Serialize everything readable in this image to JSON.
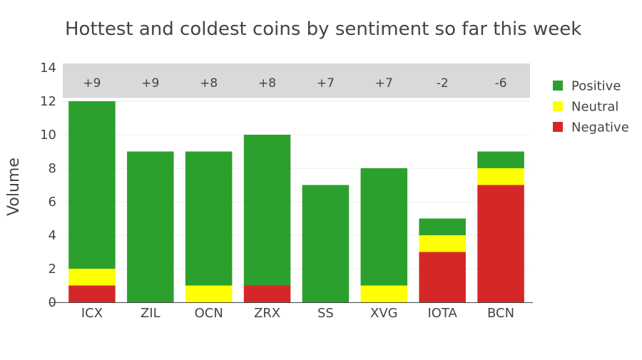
{
  "chart_data": {
    "type": "bar",
    "stacked": true,
    "title": "Hottest and coldest coins by sentiment so far this week",
    "ylabel": "Volume",
    "xlabel": "",
    "ylim": [
      0,
      14
    ],
    "yticks": [
      0,
      2,
      4,
      6,
      8,
      10,
      12,
      14
    ],
    "grid": true,
    "legend_position": "right",
    "categories": [
      "ICX",
      "ZIL",
      "OCN",
      "ZRX",
      "SS",
      "XVG",
      "IOTA",
      "BCN"
    ],
    "scores": [
      "+9",
      "+9",
      "+8",
      "+8",
      "+7",
      "+7",
      "-2",
      "-6"
    ],
    "series": [
      {
        "name": "Negative",
        "color": "#d62728",
        "values": [
          1,
          0,
          0,
          1,
          0,
          0,
          3,
          7
        ]
      },
      {
        "name": "Neutral",
        "color": "#ffff00",
        "values": [
          1,
          0,
          1,
          0,
          0,
          1,
          1,
          1
        ]
      },
      {
        "name": "Positive",
        "color": "#2ca02c",
        "values": [
          10,
          9,
          8,
          9,
          7,
          7,
          1,
          1
        ]
      }
    ],
    "legend_order": [
      "Positive",
      "Neutral",
      "Negative"
    ],
    "score_band_color": "#d9d9d9"
  }
}
